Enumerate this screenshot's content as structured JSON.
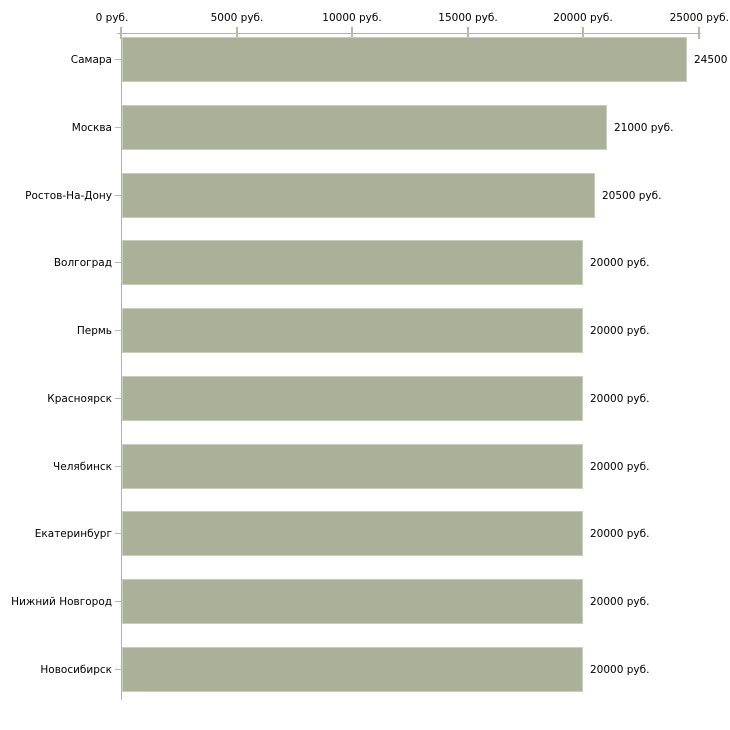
{
  "chart_data": {
    "type": "bar",
    "orientation": "horizontal",
    "title": "",
    "unit": "руб.",
    "categories": [
      "Самара",
      "Москва",
      "Ростов-На-Дону",
      "Волгоград",
      "Пермь",
      "Красноярск",
      "Челябинск",
      "Екатеринбург",
      "Нижний Новгород",
      "Новосибирск"
    ],
    "values": [
      24500,
      21000,
      20500,
      20000,
      20000,
      20000,
      20000,
      20000,
      20000,
      20000
    ],
    "value_labels": [
      "24500",
      "21000 руб.",
      "20500 руб.",
      "20000 руб.",
      "20000 руб.",
      "20000 руб.",
      "20000 руб.",
      "20000 руб.",
      "20000 руб.",
      "20000 руб."
    ],
    "x_axis": {
      "position": "top",
      "min": 0,
      "max": 25000,
      "ticks": [
        0,
        5000,
        10000,
        15000,
        20000,
        25000
      ],
      "tick_labels": [
        "0 руб.",
        "5000 руб.",
        "10000 руб.",
        "15000 руб.",
        "20000 руб.",
        "25000 руб."
      ]
    },
    "grid": false,
    "legend": false,
    "colors": {
      "bar_fill": "#aab198",
      "bar_border": "#c9cdbb",
      "axis_line": "#b2b2b2",
      "tick_mark": "#b8bb9c",
      "text": "#000000",
      "background": "#ffffff"
    }
  }
}
